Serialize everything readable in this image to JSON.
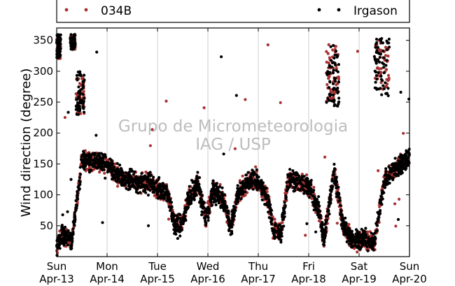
{
  "chart_data": {
    "type": "scatter",
    "ylabel": "Wind direction (degree)",
    "xlabel": "",
    "ylim": [
      0,
      370
    ],
    "yticks": [
      50,
      100,
      150,
      200,
      250,
      300,
      350
    ],
    "xlim": [
      0,
      7
    ],
    "x_unit": "days",
    "xticks": [
      {
        "day": "Sun",
        "date": "Apr-13"
      },
      {
        "day": "Mon",
        "date": "Apr-14"
      },
      {
        "day": "Tue",
        "date": "Apr-15"
      },
      {
        "day": "Wed",
        "date": "Apr-16"
      },
      {
        "day": "Thu",
        "date": "Apr-17"
      },
      {
        "day": "Fri",
        "date": "Apr-18"
      },
      {
        "day": "Sat",
        "date": "Apr-19"
      },
      {
        "day": "Sun",
        "date": "Apr-20"
      }
    ],
    "grid": "vertical",
    "legend_position": "top",
    "watermark": [
      "Grupo de Micrometeorologia",
      "IAG / USP"
    ],
    "colors": {
      "034B": "#a83232",
      "Irgason": "#000000"
    },
    "series": [
      {
        "name": "034B",
        "color": "#a83232",
        "trend": [
          [
            0.0,
            15
          ],
          [
            0.05,
            28
          ],
          [
            0.1,
            35
          ],
          [
            0.2,
            30
          ],
          [
            0.3,
            25
          ],
          [
            0.5,
            155
          ],
          [
            0.7,
            155
          ],
          [
            1.0,
            150
          ],
          [
            1.2,
            130
          ],
          [
            1.4,
            125
          ],
          [
            1.6,
            120
          ],
          [
            1.8,
            120
          ],
          [
            2.0,
            110
          ],
          [
            2.2,
            105
          ],
          [
            2.35,
            50
          ],
          [
            2.5,
            55
          ],
          [
            2.6,
            90
          ],
          [
            2.8,
            120
          ],
          [
            2.95,
            60
          ],
          [
            3.1,
            105
          ],
          [
            3.3,
            95
          ],
          [
            3.45,
            45
          ],
          [
            3.6,
            100
          ],
          [
            3.8,
            125
          ],
          [
            4.0,
            120
          ],
          [
            4.2,
            90
          ],
          [
            4.3,
            45
          ],
          [
            4.45,
            35
          ],
          [
            4.6,
            130
          ],
          [
            4.8,
            120
          ],
          [
            5.0,
            115
          ],
          [
            5.2,
            75
          ],
          [
            5.3,
            25
          ],
          [
            5.5,
            140
          ],
          [
            5.7,
            45
          ],
          [
            5.9,
            25
          ],
          [
            6.1,
            30
          ],
          [
            6.3,
            20
          ],
          [
            6.5,
            125
          ],
          [
            6.7,
            140
          ],
          [
            7.0,
            160
          ]
        ],
        "clusters": [
          {
            "x": [
              0.0,
              0.08
            ],
            "y": [
              320,
              360
            ]
          },
          {
            "x": [
              0.27,
              0.37
            ],
            "y": [
              335,
              360
            ]
          },
          {
            "x": [
              0.38,
              0.55
            ],
            "y": [
              230,
              290
            ]
          },
          {
            "x": [
              5.35,
              5.6
            ],
            "y": [
              250,
              345
            ]
          },
          {
            "x": [
              6.3,
              6.6
            ],
            "y": [
              270,
              350
            ]
          }
        ]
      },
      {
        "name": "Irgason",
        "color": "#000000",
        "trend": [
          [
            0.0,
            15
          ],
          [
            0.05,
            28
          ],
          [
            0.1,
            35
          ],
          [
            0.2,
            30
          ],
          [
            0.3,
            25
          ],
          [
            0.5,
            155
          ],
          [
            0.7,
            155
          ],
          [
            1.0,
            150
          ],
          [
            1.2,
            130
          ],
          [
            1.4,
            125
          ],
          [
            1.6,
            120
          ],
          [
            1.8,
            120
          ],
          [
            2.0,
            110
          ],
          [
            2.2,
            105
          ],
          [
            2.35,
            50
          ],
          [
            2.5,
            55
          ],
          [
            2.6,
            90
          ],
          [
            2.8,
            120
          ],
          [
            2.95,
            60
          ],
          [
            3.1,
            105
          ],
          [
            3.3,
            95
          ],
          [
            3.45,
            45
          ],
          [
            3.6,
            100
          ],
          [
            3.8,
            125
          ],
          [
            4.0,
            120
          ],
          [
            4.2,
            90
          ],
          [
            4.3,
            45
          ],
          [
            4.45,
            35
          ],
          [
            4.6,
            130
          ],
          [
            4.8,
            120
          ],
          [
            5.0,
            115
          ],
          [
            5.2,
            75
          ],
          [
            5.3,
            25
          ],
          [
            5.5,
            140
          ],
          [
            5.7,
            45
          ],
          [
            5.9,
            25
          ],
          [
            6.1,
            30
          ],
          [
            6.3,
            20
          ],
          [
            6.5,
            125
          ],
          [
            6.7,
            140
          ],
          [
            7.0,
            160
          ]
        ],
        "clusters": [
          {
            "x": [
              0.0,
              0.08
            ],
            "y": [
              320,
              360
            ]
          },
          {
            "x": [
              0.27,
              0.37
            ],
            "y": [
              335,
              360
            ]
          },
          {
            "x": [
              0.38,
              0.55
            ],
            "y": [
              230,
              300
            ]
          },
          {
            "x": [
              5.35,
              5.6
            ],
            "y": [
              240,
              345
            ]
          },
          {
            "x": [
              6.3,
              6.6
            ],
            "y": [
              260,
              355
            ]
          }
        ]
      }
    ]
  }
}
